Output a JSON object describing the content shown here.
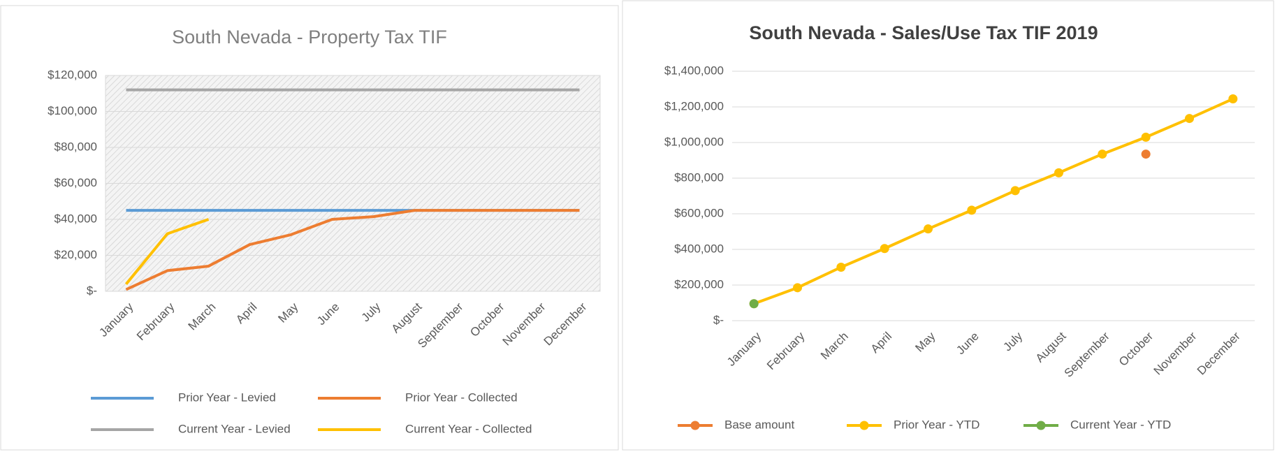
{
  "chart_data": [
    {
      "type": "line",
      "title": "South Nevada - Property Tax TIF",
      "categories": [
        "January",
        "February",
        "March",
        "April",
        "May",
        "June",
        "July",
        "August",
        "September",
        "October",
        "November",
        "December"
      ],
      "series": [
        {
          "name": "Prior Year - Levied",
          "color": "#5b9bd5",
          "values": [
            45000,
            45000,
            45000,
            45000,
            45000,
            45000,
            45000,
            45000,
            45000,
            45000,
            45000,
            45000
          ]
        },
        {
          "name": "Prior Year - Collected",
          "color": "#ed7d31",
          "values": [
            1000,
            11500,
            14000,
            26000,
            31500,
            40000,
            41500,
            45000,
            45000,
            45000,
            45000,
            45000
          ]
        },
        {
          "name": "Current Year - Levied",
          "color": "#a5a5a5",
          "values": [
            112000,
            112000,
            112000,
            112000,
            112000,
            112000,
            112000,
            112000,
            112000,
            112000,
            112000,
            112000
          ]
        },
        {
          "name": "Current Year - Collected",
          "color": "#ffc000",
          "values": [
            4000,
            32000,
            40000,
            null,
            null,
            null,
            null,
            null,
            null,
            null,
            null,
            null
          ]
        }
      ],
      "ylim": [
        0,
        120000
      ],
      "yticks": [
        {
          "value": 0,
          "label": "$-"
        },
        {
          "value": 20000,
          "label": "$20,000"
        },
        {
          "value": 40000,
          "label": "$40,000"
        },
        {
          "value": 60000,
          "label": "$60,000"
        },
        {
          "value": 80000,
          "label": "$80,000"
        },
        {
          "value": 100000,
          "label": "$100,000"
        },
        {
          "value": 120000,
          "label": "$120,000"
        }
      ],
      "grid": true,
      "markers": false,
      "legend": "bottom"
    },
    {
      "type": "line",
      "title": "South Nevada - Sales/Use Tax TIF 2019",
      "categories": [
        "January",
        "February",
        "March",
        "April",
        "May",
        "June",
        "July",
        "August",
        "September",
        "October",
        "November",
        "December"
      ],
      "series": [
        {
          "name": "Base amount",
          "color": "#ed7d31",
          "values": [
            null,
            null,
            null,
            null,
            null,
            null,
            null,
            null,
            null,
            935000,
            null,
            null
          ]
        },
        {
          "name": "Prior Year - YTD",
          "color": "#ffc000",
          "values": [
            95000,
            185000,
            300000,
            405000,
            515000,
            620000,
            730000,
            830000,
            935000,
            1030000,
            1135000,
            1245000
          ]
        },
        {
          "name": "Current Year - YTD",
          "color": "#70ad47",
          "values": [
            95000,
            null,
            null,
            null,
            null,
            null,
            null,
            null,
            null,
            null,
            null,
            null
          ]
        }
      ],
      "ylim": [
        0,
        1400000
      ],
      "yticks": [
        {
          "value": 0,
          "label": "$-"
        },
        {
          "value": 200000,
          "label": "$200,000"
        },
        {
          "value": 400000,
          "label": "$400,000"
        },
        {
          "value": 600000,
          "label": "$600,000"
        },
        {
          "value": 800000,
          "label": "$800,000"
        },
        {
          "value": 1000000,
          "label": "$1,000,000"
        },
        {
          "value": 1200000,
          "label": "$1,200,000"
        },
        {
          "value": 1400000,
          "label": "$1,400,000"
        }
      ],
      "grid": true,
      "markers": true,
      "legend": "bottom"
    }
  ]
}
